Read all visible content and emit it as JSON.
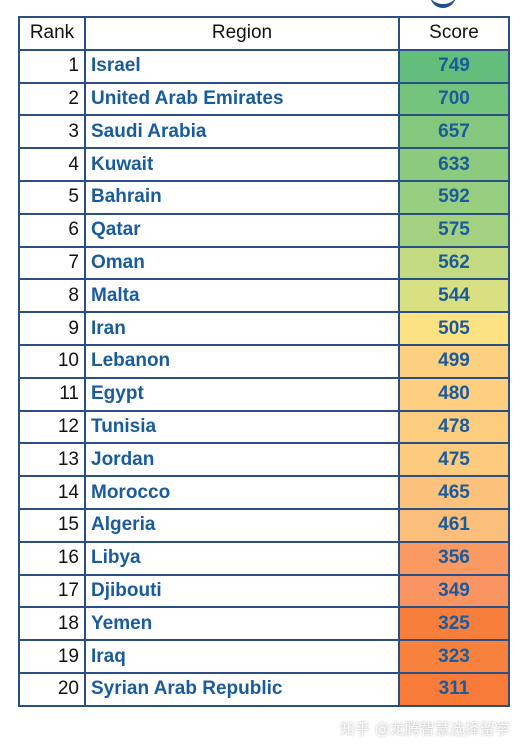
{
  "table": {
    "headers": {
      "rank": "Rank",
      "region": "Region",
      "score": "Score"
    },
    "rows": [
      {
        "rank": "1",
        "region": "Israel",
        "score": "749",
        "color": "#63be7b"
      },
      {
        "rank": "2",
        "region": "United Arab Emirates",
        "score": "700",
        "color": "#75c47d"
      },
      {
        "rank": "3",
        "region": "Saudi Arabia",
        "score": "657",
        "color": "#84c87e"
      },
      {
        "rank": "4",
        "region": "Kuwait",
        "score": "633",
        "color": "#8ccb7e"
      },
      {
        "rank": "5",
        "region": "Bahrain",
        "score": "592",
        "color": "#98ce7f"
      },
      {
        "rank": "6",
        "region": "Qatar",
        "score": "575",
        "color": "#a3d17f"
      },
      {
        "rank": "7",
        "region": "Oman",
        "score": "562",
        "color": "#c3da80"
      },
      {
        "rank": "8",
        "region": "Malta",
        "score": "544",
        "color": "#d9e082"
      },
      {
        "rank": "9",
        "region": "Iran",
        "score": "505",
        "color": "#fde283"
      },
      {
        "rank": "10",
        "region": "Lebanon",
        "score": "499",
        "color": "#fdd07f"
      },
      {
        "rank": "11",
        "region": "Egypt",
        "score": "480",
        "color": "#fdcf7f"
      },
      {
        "rank": "12",
        "region": "Tunisia",
        "score": "478",
        "color": "#fdcd7e"
      },
      {
        "rank": "13",
        "region": "Jordan",
        "score": "475",
        "color": "#fdcb7e"
      },
      {
        "rank": "14",
        "region": "Morocco",
        "score": "465",
        "color": "#fcc27c"
      },
      {
        "rank": "15",
        "region": "Algeria",
        "score": "461",
        "color": "#fcbf7b"
      },
      {
        "rank": "16",
        "region": "Libya",
        "score": "356",
        "color": "#fa9a62"
      },
      {
        "rank": "17",
        "region": "Djibouti",
        "score": "349",
        "color": "#fa9460"
      },
      {
        "rank": "18",
        "region": "Yemen",
        "score": "325",
        "color": "#f87e3c"
      },
      {
        "rank": "19",
        "region": "Iraq",
        "score": "323",
        "color": "#f8813e"
      },
      {
        "rank": "20",
        "region": "Syrian Arab Republic",
        "score": "311",
        "color": "#f87b3a"
      }
    ]
  },
  "watermark": "知乎 @龙腾智慧选择留学"
}
